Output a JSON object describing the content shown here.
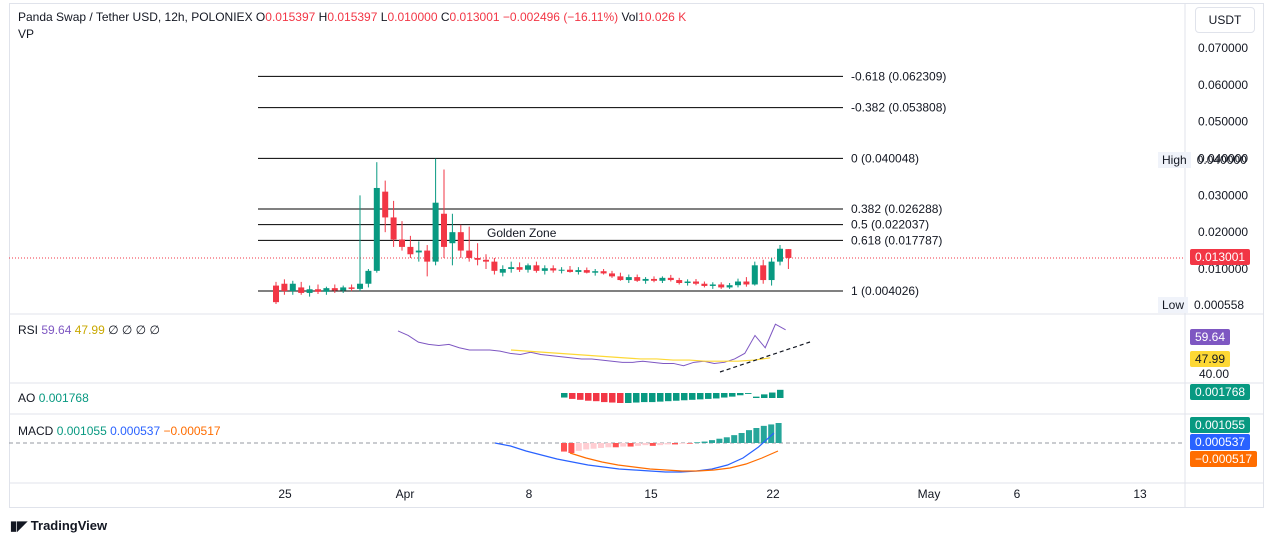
{
  "header": {
    "symbol": "Panda Swap / Tether USD, 12h, POLONIEX",
    "o_label": "O",
    "o_value": "0.015397",
    "h_label": "H",
    "h_value": "0.015397",
    "l_label": "L",
    "l_value": "0.010000",
    "c_label": "C",
    "c_value": "0.013001",
    "change": "−0.002496 (−16.11%)",
    "vol_label": "Vol",
    "vol_value": "10.026 K",
    "vp": "VP"
  },
  "currency_button": "USDT",
  "fib_levels": [
    {
      "label": "-0.618 (0.062309)",
      "value": 0.062309
    },
    {
      "label": "-0.382 (0.053808)",
      "value": 0.053808
    },
    {
      "label": "0 (0.040048)",
      "value": 0.040048
    },
    {
      "label": "0.382 (0.026288)",
      "value": 0.026288
    },
    {
      "label": "0.5 (0.022037)",
      "value": 0.022037
    },
    {
      "label": "0.618 (0.017787)",
      "value": 0.017787
    },
    {
      "label": "1 (0.004026)",
      "value": 0.004026
    }
  ],
  "golden_zone_label": "Golden Zone",
  "price_axis": [
    "0.070000",
    "0.060000",
    "0.050000",
    "0.040000",
    "0.030000",
    "0.020000",
    "0.010000"
  ],
  "high_label": "High",
  "high_value": "0.040000",
  "low_label": "Low",
  "low_value": "0.000558",
  "last_price": "0.013001",
  "time_axis": [
    "25",
    "Apr",
    "8",
    "15",
    "22",
    "May",
    "6",
    "13"
  ],
  "rsi": {
    "label": "RSI",
    "v1": "59.64",
    "v2": "47.99",
    "rest": "∅ ∅ ∅ ∅",
    "tag1": "59.64",
    "tag2": "47.99",
    "level": "40.00"
  },
  "ao": {
    "label": "AO",
    "value": "0.001768",
    "tag": "0.001768"
  },
  "macd": {
    "label": "MACD",
    "v1": "0.001055",
    "v2": "0.000537",
    "v3": "−0.000517",
    "tag1": "0.001055",
    "tag2": "0.000537",
    "tag3": "−0.000517"
  },
  "branding": "TradingView",
  "colors": {
    "up": "#089981",
    "down": "#f23645",
    "rsi": "#7e57c2",
    "rsi_ma": "#fdd835",
    "macd": "#2962ff",
    "signal": "#ff6d00",
    "fib": "#000000"
  },
  "chart_data": {
    "type": "candlestick",
    "ylim": [
      0,
      0.075
    ],
    "candles": [
      {
        "o": 0.0055,
        "h": 0.0065,
        "l": 0.0005,
        "c": 0.001
      },
      {
        "o": 0.006,
        "h": 0.0072,
        "l": 0.003,
        "c": 0.004
      },
      {
        "o": 0.004,
        "h": 0.0068,
        "l": 0.003,
        "c": 0.006
      },
      {
        "o": 0.005,
        "h": 0.0065,
        "l": 0.003,
        "c": 0.0035
      },
      {
        "o": 0.0035,
        "h": 0.0055,
        "l": 0.0025,
        "c": 0.0045
      },
      {
        "o": 0.0045,
        "h": 0.0058,
        "l": 0.0032,
        "c": 0.0038
      },
      {
        "o": 0.0038,
        "h": 0.0052,
        "l": 0.003,
        "c": 0.0048
      },
      {
        "o": 0.0048,
        "h": 0.0058,
        "l": 0.0035,
        "c": 0.0042
      },
      {
        "o": 0.0042,
        "h": 0.0055,
        "l": 0.0035,
        "c": 0.005
      },
      {
        "o": 0.005,
        "h": 0.0058,
        "l": 0.004,
        "c": 0.0046
      },
      {
        "o": 0.0046,
        "h": 0.03,
        "l": 0.004,
        "c": 0.006
      },
      {
        "o": 0.006,
        "h": 0.01,
        "l": 0.005,
        "c": 0.0095
      },
      {
        "o": 0.0095,
        "h": 0.039,
        "l": 0.009,
        "c": 0.032
      },
      {
        "o": 0.031,
        "h": 0.034,
        "l": 0.02,
        "c": 0.024
      },
      {
        "o": 0.024,
        "h": 0.0285,
        "l": 0.016,
        "c": 0.018
      },
      {
        "o": 0.018,
        "h": 0.023,
        "l": 0.015,
        "c": 0.016
      },
      {
        "o": 0.016,
        "h": 0.019,
        "l": 0.013,
        "c": 0.014
      },
      {
        "o": 0.0145,
        "h": 0.0175,
        "l": 0.012,
        "c": 0.015
      },
      {
        "o": 0.015,
        "h": 0.0165,
        "l": 0.008,
        "c": 0.012
      },
      {
        "o": 0.012,
        "h": 0.04,
        "l": 0.011,
        "c": 0.028
      },
      {
        "o": 0.025,
        "h": 0.037,
        "l": 0.013,
        "c": 0.016
      },
      {
        "o": 0.017,
        "h": 0.025,
        "l": 0.011,
        "c": 0.02
      },
      {
        "o": 0.02,
        "h": 0.022,
        "l": 0.013,
        "c": 0.015
      },
      {
        "o": 0.015,
        "h": 0.0215,
        "l": 0.012,
        "c": 0.013
      },
      {
        "o": 0.013,
        "h": 0.017,
        "l": 0.011,
        "c": 0.0125
      },
      {
        "o": 0.0125,
        "h": 0.014,
        "l": 0.01,
        "c": 0.012
      },
      {
        "o": 0.012,
        "h": 0.013,
        "l": 0.0085,
        "c": 0.0095
      },
      {
        "o": 0.009,
        "h": 0.011,
        "l": 0.008,
        "c": 0.01
      },
      {
        "o": 0.01,
        "h": 0.012,
        "l": 0.009,
        "c": 0.0105
      },
      {
        "o": 0.0105,
        "h": 0.0118,
        "l": 0.0092,
        "c": 0.0098
      },
      {
        "o": 0.0098,
        "h": 0.0115,
        "l": 0.009,
        "c": 0.011
      },
      {
        "o": 0.011,
        "h": 0.012,
        "l": 0.009,
        "c": 0.0095
      },
      {
        "o": 0.0095,
        "h": 0.011,
        "l": 0.0085,
        "c": 0.0102
      },
      {
        "o": 0.0102,
        "h": 0.011,
        "l": 0.009,
        "c": 0.0096
      },
      {
        "o": 0.0096,
        "h": 0.0105,
        "l": 0.0088,
        "c": 0.0098
      },
      {
        "o": 0.0098,
        "h": 0.0108,
        "l": 0.009,
        "c": 0.0092
      },
      {
        "o": 0.0092,
        "h": 0.0105,
        "l": 0.0085,
        "c": 0.0097
      },
      {
        "o": 0.0097,
        "h": 0.0104,
        "l": 0.0088,
        "c": 0.009
      },
      {
        "o": 0.009,
        "h": 0.01,
        "l": 0.0082,
        "c": 0.0094
      },
      {
        "o": 0.0094,
        "h": 0.01,
        "l": 0.0085,
        "c": 0.0088
      },
      {
        "o": 0.0088,
        "h": 0.0095,
        "l": 0.0076,
        "c": 0.008
      },
      {
        "o": 0.008,
        "h": 0.009,
        "l": 0.0068,
        "c": 0.007
      },
      {
        "o": 0.007,
        "h": 0.0085,
        "l": 0.0062,
        "c": 0.0078
      },
      {
        "o": 0.0078,
        "h": 0.0085,
        "l": 0.0065,
        "c": 0.0068
      },
      {
        "o": 0.0068,
        "h": 0.0078,
        "l": 0.006,
        "c": 0.0073
      },
      {
        "o": 0.0073,
        "h": 0.008,
        "l": 0.0064,
        "c": 0.0068
      },
      {
        "o": 0.0068,
        "h": 0.008,
        "l": 0.0062,
        "c": 0.0076
      },
      {
        "o": 0.0076,
        "h": 0.0084,
        "l": 0.0066,
        "c": 0.007
      },
      {
        "o": 0.007,
        "h": 0.0076,
        "l": 0.0058,
        "c": 0.0062
      },
      {
        "o": 0.0062,
        "h": 0.0072,
        "l": 0.0055,
        "c": 0.0066
      },
      {
        "o": 0.0066,
        "h": 0.0073,
        "l": 0.0056,
        "c": 0.006
      },
      {
        "o": 0.006,
        "h": 0.0066,
        "l": 0.005,
        "c": 0.0054
      },
      {
        "o": 0.0054,
        "h": 0.0064,
        "l": 0.0046,
        "c": 0.0058
      },
      {
        "o": 0.0058,
        "h": 0.0064,
        "l": 0.0046,
        "c": 0.005
      },
      {
        "o": 0.005,
        "h": 0.0062,
        "l": 0.0046,
        "c": 0.0056
      },
      {
        "o": 0.0056,
        "h": 0.0074,
        "l": 0.005,
        "c": 0.0066
      },
      {
        "o": 0.0066,
        "h": 0.0078,
        "l": 0.0052,
        "c": 0.0058
      },
      {
        "o": 0.0058,
        "h": 0.012,
        "l": 0.0055,
        "c": 0.011
      },
      {
        "o": 0.011,
        "h": 0.0125,
        "l": 0.006,
        "c": 0.007
      },
      {
        "o": 0.007,
        "h": 0.013,
        "l": 0.0055,
        "c": 0.012
      },
      {
        "o": 0.012,
        "h": 0.0165,
        "l": 0.011,
        "c": 0.0155
      },
      {
        "o": 0.0154,
        "h": 0.0154,
        "l": 0.01,
        "c": 0.013
      }
    ],
    "rsi_line": [
      72,
      68,
      62,
      60,
      59,
      60,
      57,
      55,
      55,
      55,
      54,
      52,
      51,
      53,
      51,
      50,
      49,
      48,
      47,
      47,
      46,
      45,
      44,
      44,
      45,
      44,
      43,
      43,
      41,
      44,
      45,
      43,
      44,
      47,
      52,
      68,
      57,
      78,
      73
    ],
    "rsi_ma": [
      55,
      54,
      53,
      52,
      51,
      50,
      49,
      48,
      47,
      47,
      46,
      46,
      45,
      45,
      45,
      46,
      48
    ],
    "ao": [
      -0.001,
      -0.0013,
      -0.0015,
      -0.0017,
      -0.0018,
      -0.002,
      -0.0021,
      -0.0022,
      -0.0022,
      -0.0021,
      -0.002,
      -0.002,
      -0.0019,
      -0.0018,
      -0.0017,
      -0.0016,
      -0.0015,
      -0.0014,
      -0.0013,
      -0.0012,
      -0.001,
      -0.0008,
      -0.0005,
      -0.0002,
      0.0003,
      0.0008,
      0.0012,
      0.0018
    ],
    "macd_hist": [
      -0.0012,
      -0.0014,
      -0.0011,
      -0.0009,
      -0.0008,
      -0.0007,
      -0.0006,
      -0.0006,
      -0.0005,
      -0.0005,
      -0.0004,
      -0.0003,
      -0.0004,
      -0.0003,
      -0.0002,
      -0.0002,
      -0.0001,
      -0.0001,
      0.0001,
      0.0002,
      0.0004,
      0.0006,
      0.0008,
      0.0011,
      0.0014,
      0.0018,
      0.0021,
      0.0024,
      0.0026,
      0.0028
    ],
    "macd_line": [
      0,
      -0.0003,
      -0.0008,
      -0.0012,
      -0.0016,
      -0.0019,
      -0.0022,
      -0.0024,
      -0.0026,
      -0.0027,
      -0.0028,
      -0.0029,
      -0.0029,
      -0.0028,
      -0.0026,
      -0.0022,
      -0.0015,
      -0.0004,
      0.001
    ],
    "signal_line": [
      -0.001,
      -0.0015,
      -0.0019,
      -0.0022,
      -0.0024,
      -0.0026,
      -0.0027,
      -0.0028,
      -0.0028,
      -0.0027,
      -0.0025,
      -0.0021,
      -0.0015,
      -0.0008
    ]
  }
}
